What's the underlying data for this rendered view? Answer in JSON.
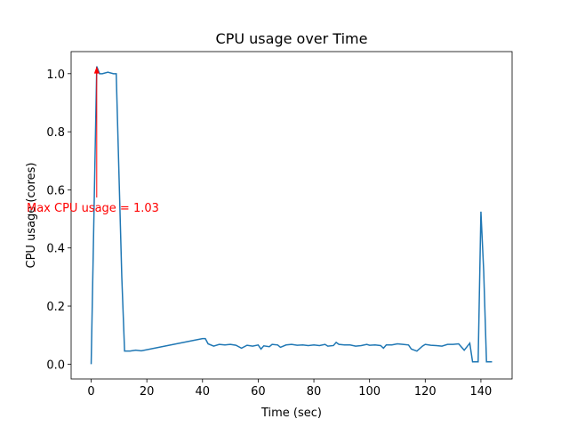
{
  "chart_data": {
    "type": "line",
    "title": "CPU usage over Time",
    "x_label": "Time (sec)",
    "y_label": "CPU usage (cores)",
    "annotation": "Max CPU usage = 1.03",
    "annotation_color": "#ff0000",
    "color": "#1f77b4",
    "x": [
      0,
      2,
      3,
      4,
      6,
      8,
      9,
      11,
      12,
      14,
      16,
      18,
      40,
      41,
      42,
      44,
      46,
      48,
      50,
      52,
      54,
      56,
      58,
      60,
      61,
      62,
      64,
      65,
      67,
      68,
      70,
      72,
      74,
      76,
      78,
      80,
      82,
      84,
      85,
      87,
      88,
      89,
      91,
      93,
      95,
      97,
      99,
      100,
      102,
      104,
      105,
      106,
      108,
      110,
      112,
      114,
      115,
      117,
      119,
      120,
      122,
      124,
      126,
      128,
      130,
      132,
      134,
      136,
      137,
      139,
      140,
      141,
      142,
      144
    ],
    "values": [
      0,
      1.025,
      1.0,
      1.0,
      1.005,
      1.0,
      1.0,
      0.3,
      0.045,
      0.045,
      0.048,
      0.046,
      0.088,
      0.088,
      0.07,
      0.062,
      0.068,
      0.066,
      0.068,
      0.065,
      0.055,
      0.065,
      0.062,
      0.066,
      0.052,
      0.063,
      0.06,
      0.068,
      0.066,
      0.058,
      0.066,
      0.068,
      0.065,
      0.066,
      0.064,
      0.066,
      0.064,
      0.068,
      0.062,
      0.064,
      0.075,
      0.068,
      0.066,
      0.066,
      0.062,
      0.064,
      0.068,
      0.065,
      0.066,
      0.064,
      0.055,
      0.066,
      0.066,
      0.07,
      0.068,
      0.066,
      0.052,
      0.045,
      0.062,
      0.068,
      0.065,
      0.064,
      0.062,
      0.068,
      0.068,
      0.07,
      0.048,
      0.072,
      0.008,
      0.008,
      0.525,
      0.32,
      0.008,
      0.008
    ],
    "xlim": [
      -7.2,
      151.2
    ],
    "xticks": [
      0,
      20,
      40,
      60,
      80,
      100,
      120,
      140
    ],
    "ylim": [
      -0.051,
      1.076
    ],
    "yticks": [
      {
        "value": 0,
        "label": "0.0"
      },
      {
        "value": 0.2,
        "label": "0.2"
      },
      {
        "value": 0.4,
        "label": "0.4"
      },
      {
        "value": 0.6,
        "label": "0.6"
      },
      {
        "value": 0.8,
        "label": "0.8"
      },
      {
        "value": 1,
        "label": "1.0"
      }
    ]
  }
}
